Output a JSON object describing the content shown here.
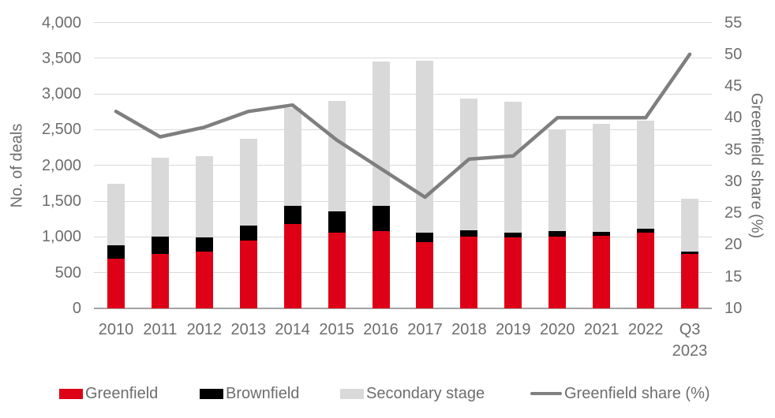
{
  "chart_data": {
    "type": "bar",
    "subtype": "stacked-bar-with-line",
    "title": "",
    "categories": [
      "2010",
      "2011",
      "2012",
      "2013",
      "2014",
      "2015",
      "2016",
      "2017",
      "2018",
      "2019",
      "2020",
      "2021",
      "2022",
      "Q3\n2023"
    ],
    "series": [
      {
        "name": "Greenfield",
        "type": "bar",
        "color": "#dd0016",
        "values": [
          690,
          760,
          800,
          950,
          1180,
          1060,
          1080,
          930,
          1000,
          990,
          1000,
          1020,
          1060,
          760
        ]
      },
      {
        "name": "Brownfield",
        "type": "bar",
        "color": "#000000",
        "values": [
          190,
          240,
          190,
          210,
          250,
          300,
          350,
          130,
          90,
          70,
          80,
          50,
          50,
          40
        ]
      },
      {
        "name": "Secondary stage",
        "type": "bar",
        "color": "#d9d9d9",
        "values": [
          860,
          1110,
          1140,
          1210,
          1370,
          1540,
          2020,
          2410,
          1840,
          1830,
          1420,
          1510,
          1520,
          730
        ]
      },
      {
        "name": "Greenfield share (%)",
        "type": "line",
        "axis": "right",
        "color": "#7f7f7f",
        "values": [
          41,
          37,
          38.5,
          41,
          42,
          36.5,
          32,
          27.5,
          33.5,
          34,
          40,
          40,
          40,
          50
        ]
      }
    ],
    "left_axis": {
      "label": "No. of deals",
      "min": 0,
      "max": 4000,
      "step": 500,
      "tick_values": [
        0,
        500,
        1000,
        1500,
        2000,
        2500,
        3000,
        3500,
        4000
      ],
      "tick_labels": [
        "0",
        "500",
        "1,000",
        "1,500",
        "2,000",
        "2,500",
        "3,000",
        "3,500",
        "4,000"
      ]
    },
    "right_axis": {
      "label": "Greenfield share (%)",
      "min": 10,
      "max": 55,
      "step": 5,
      "tick_values": [
        10,
        15,
        20,
        25,
        30,
        35,
        40,
        45,
        50,
        55
      ],
      "tick_labels": [
        "10",
        "15",
        "20",
        "25",
        "30",
        "35",
        "40",
        "45",
        "50",
        "55"
      ]
    },
    "grid": true,
    "legend_position": "bottom",
    "legend_items": [
      "Greenfield",
      "Brownfield",
      "Secondary stage",
      "Greenfield share (%)"
    ]
  },
  "colors": {
    "greenfield": "#dd0016",
    "brownfield": "#000000",
    "secondary_stage": "#d9d9d9",
    "share_line": "#7f7f7f",
    "gridline": "#d9d9d9",
    "axis_line": "#a3a3a3",
    "text": "#6d6d6d"
  }
}
